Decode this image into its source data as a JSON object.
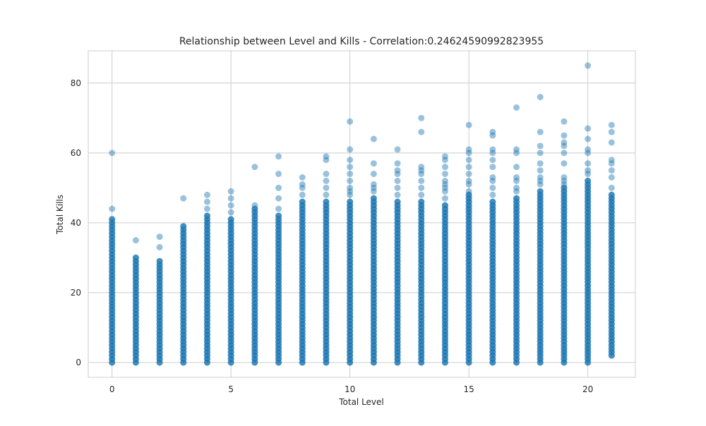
{
  "chart_data": {
    "type": "scatter",
    "title": "Relationship between Level and Kills - Correlation:0.24624590992823955",
    "xlabel": "Total Level",
    "ylabel": "Total Kills",
    "xlim": [
      -1,
      22
    ],
    "ylim": [
      -4.25,
      89.25
    ],
    "xticks": [
      0,
      5,
      10,
      15,
      20
    ],
    "yticks": [
      0,
      20,
      40,
      60,
      80
    ],
    "grid": true,
    "legend": "none",
    "marker_color": "#1f77b4",
    "marker_opacity": 0.45,
    "columns": [
      {
        "x": 0,
        "y_min": 0,
        "y_max": 41,
        "outliers": [
          44,
          60
        ]
      },
      {
        "x": 1,
        "y_min": 0,
        "y_max": 30,
        "outliers": [
          35
        ]
      },
      {
        "x": 2,
        "y_min": 0,
        "y_max": 29,
        "outliers": [
          33,
          36
        ]
      },
      {
        "x": 3,
        "y_min": 0,
        "y_max": 39,
        "outliers": [
          47
        ]
      },
      {
        "x": 4,
        "y_min": 0,
        "y_max": 42,
        "outliers": [
          44,
          46,
          48
        ]
      },
      {
        "x": 5,
        "y_min": 0,
        "y_max": 41,
        "outliers": [
          43,
          45,
          47,
          49
        ]
      },
      {
        "x": 6,
        "y_min": 0,
        "y_max": 44,
        "outliers": [
          45,
          56
        ]
      },
      {
        "x": 7,
        "y_min": 0,
        "y_max": 42,
        "outliers": [
          44,
          47,
          50,
          54,
          59
        ]
      },
      {
        "x": 8,
        "y_min": 0,
        "y_max": 46,
        "outliers": [
          48,
          50,
          51,
          53
        ]
      },
      {
        "x": 9,
        "y_min": 0,
        "y_max": 46,
        "outliers": [
          48,
          50,
          52,
          54,
          58,
          59
        ]
      },
      {
        "x": 10,
        "y_min": 0,
        "y_max": 46,
        "outliers": [
          48,
          49,
          50,
          52,
          54,
          56,
          58,
          61,
          69
        ]
      },
      {
        "x": 11,
        "y_min": 0,
        "y_max": 47,
        "outliers": [
          49,
          50,
          51,
          54,
          57,
          64
        ]
      },
      {
        "x": 12,
        "y_min": 0,
        "y_max": 46,
        "outliers": [
          48,
          50,
          52,
          54,
          55,
          57,
          61
        ]
      },
      {
        "x": 13,
        "y_min": 0,
        "y_max": 46,
        "outliers": [
          48,
          50,
          52,
          54,
          55,
          56,
          66,
          70
        ]
      },
      {
        "x": 14,
        "y_min": 0,
        "y_max": 45,
        "outliers": [
          47,
          49,
          50,
          51,
          52,
          54,
          56,
          58,
          59
        ]
      },
      {
        "x": 15,
        "y_min": 0,
        "y_max": 48,
        "outliers": [
          49,
          51,
          52,
          54,
          56,
          58,
          60,
          61,
          68
        ]
      },
      {
        "x": 16,
        "y_min": 0,
        "y_max": 46,
        "outliers": [
          48,
          50,
          52,
          53,
          56,
          58,
          60,
          61,
          65,
          66
        ]
      },
      {
        "x": 17,
        "y_min": 0,
        "y_max": 47,
        "outliers": [
          49,
          50,
          52,
          53,
          56,
          60,
          61,
          73
        ]
      },
      {
        "x": 18,
        "y_min": 0,
        "y_max": 49,
        "outliers": [
          51,
          52,
          53,
          55,
          57,
          60,
          62,
          66,
          76
        ]
      },
      {
        "x": 19,
        "y_min": 0,
        "y_max": 50,
        "outliers": [
          51,
          52,
          53,
          57,
          60,
          62,
          63,
          65,
          69
        ]
      },
      {
        "x": 20,
        "y_min": 0,
        "y_max": 52,
        "outliers": [
          54,
          55,
          57,
          60,
          61,
          64,
          67,
          85
        ]
      },
      {
        "x": 21,
        "y_min": 2,
        "y_max": 48,
        "outliers": [
          50,
          53,
          55,
          57,
          58,
          63,
          66,
          68
        ]
      }
    ]
  }
}
